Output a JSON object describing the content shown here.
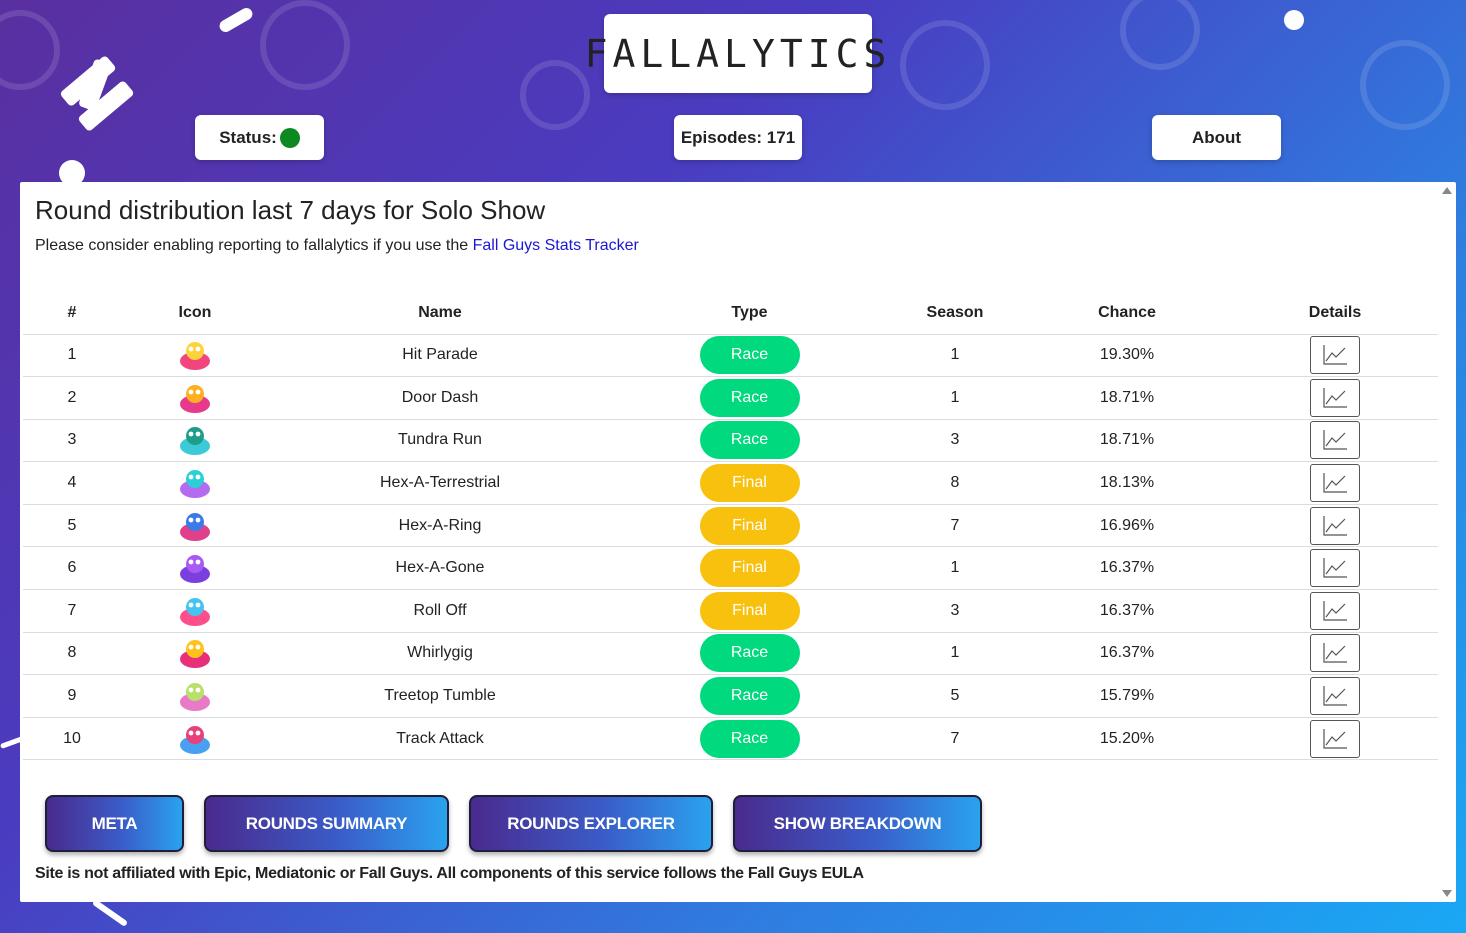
{
  "header": {
    "logo": "FALLALYTICS",
    "status_label": "Status:",
    "episodes_label": "Episodes: 171",
    "about_label": "About"
  },
  "colors": {
    "race": "#00d97e",
    "final": "#f7c10e",
    "status_online": "#0d8a1f",
    "link": "#1a18d4"
  },
  "panel": {
    "title": "Round distribution last 7 days for Solo Show",
    "notice_text": "Please consider enabling reporting to fallalytics if you use the ",
    "notice_link": "Fall Guys Stats Tracker"
  },
  "table": {
    "headers": [
      "#",
      "Icon",
      "Name",
      "Type",
      "Season",
      "Chance",
      "Details"
    ],
    "rows": [
      {
        "rank": "1",
        "icon": "hit-parade-icon",
        "name": "Hit Parade",
        "type": "Race",
        "season": "1",
        "chance": "19.30%"
      },
      {
        "rank": "2",
        "icon": "door-dash-icon",
        "name": "Door Dash",
        "type": "Race",
        "season": "1",
        "chance": "18.71%"
      },
      {
        "rank": "3",
        "icon": "tundra-run-icon",
        "name": "Tundra Run",
        "type": "Race",
        "season": "3",
        "chance": "18.71%"
      },
      {
        "rank": "4",
        "icon": "hex-a-terrestrial-icon",
        "name": "Hex-A-Terrestrial",
        "type": "Final",
        "season": "8",
        "chance": "18.13%"
      },
      {
        "rank": "5",
        "icon": "hex-a-ring-icon",
        "name": "Hex-A-Ring",
        "type": "Final",
        "season": "7",
        "chance": "16.96%"
      },
      {
        "rank": "6",
        "icon": "hex-a-gone-icon",
        "name": "Hex-A-Gone",
        "type": "Final",
        "season": "1",
        "chance": "16.37%"
      },
      {
        "rank": "7",
        "icon": "roll-off-icon",
        "name": "Roll Off",
        "type": "Final",
        "season": "3",
        "chance": "16.37%"
      },
      {
        "rank": "8",
        "icon": "whirlygig-icon",
        "name": "Whirlygig",
        "type": "Race",
        "season": "1",
        "chance": "16.37%"
      },
      {
        "rank": "9",
        "icon": "treetop-tumble-icon",
        "name": "Treetop Tumble",
        "type": "Race",
        "season": "5",
        "chance": "15.79%"
      },
      {
        "rank": "10",
        "icon": "track-attack-icon",
        "name": "Track Attack",
        "type": "Race",
        "season": "7",
        "chance": "15.20%"
      }
    ]
  },
  "nav": {
    "meta": "META",
    "rounds_summary": "ROUNDS SUMMARY",
    "rounds_explorer": "ROUNDS EXPLORER",
    "show_breakdown": "SHOW BREAKDOWN"
  },
  "footer": "Site is not affiliated with Epic, Mediatonic or Fall Guys. All components of this service follows the Fall Guys EULA"
}
